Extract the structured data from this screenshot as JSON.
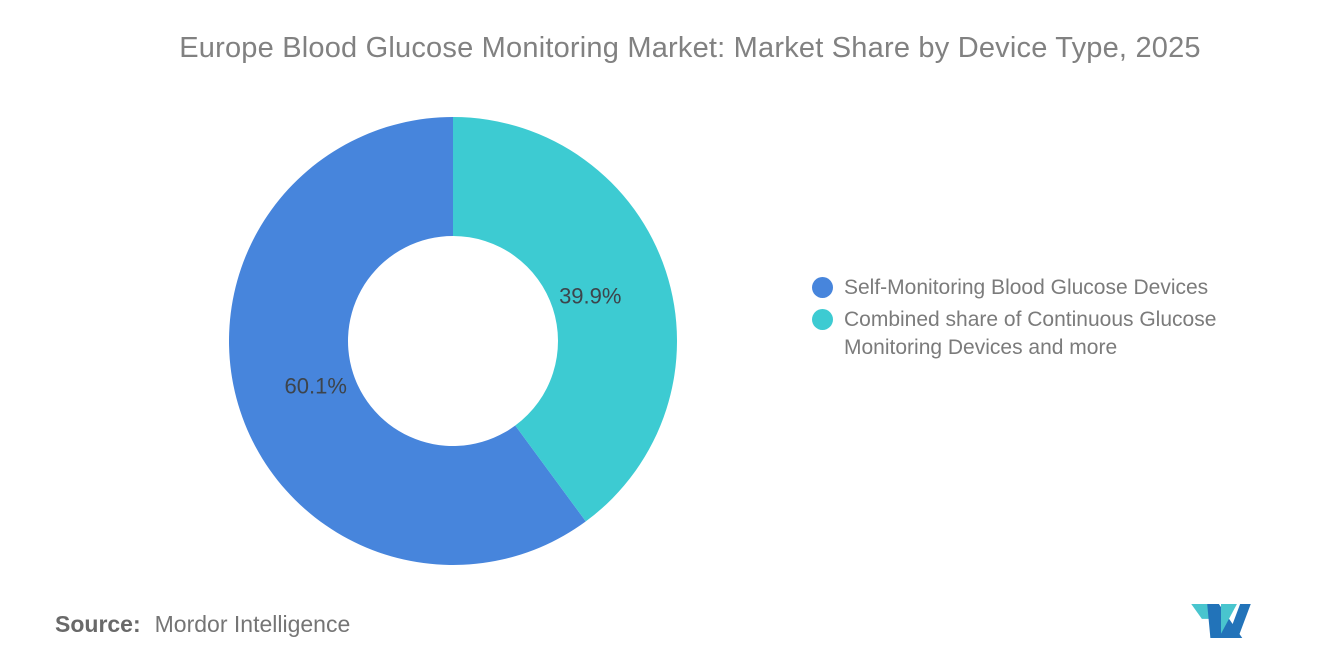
{
  "chart_data": {
    "type": "pie",
    "subtype": "donut",
    "title": "Europe Blood Glucose Monitoring Market: Market Share by Device Type, 2025",
    "slices": [
      {
        "label": "Self-Monitoring Blood Glucose Devices",
        "value": 60.1,
        "display": "60.1%",
        "color": "#4785DC"
      },
      {
        "label": "Combined share of Continuous Glucose Monitoring Devices and more",
        "value": 39.9,
        "display": "39.9%",
        "color": "#3DCBD2"
      }
    ],
    "start_angle": "top",
    "direction": "counterclockwise",
    "inner_radius_ratio": 0.47,
    "label_radius_ratio": 0.645,
    "label_color": "#3D444B",
    "legend_position": "right",
    "grid": false,
    "background": "#FFFFFF"
  },
  "legend": {
    "items": [
      "Self-Monitoring Blood Glucose Devices",
      "Combined share of Continuous Glucose Monitoring Devices and more"
    ]
  },
  "source": {
    "prefix": "Source:",
    "text": "Mordor Intelligence"
  },
  "logo": {
    "name": "mordor-intelligence-logo",
    "teal_color": "#49C5CE",
    "blue_color": "#2273B9"
  }
}
